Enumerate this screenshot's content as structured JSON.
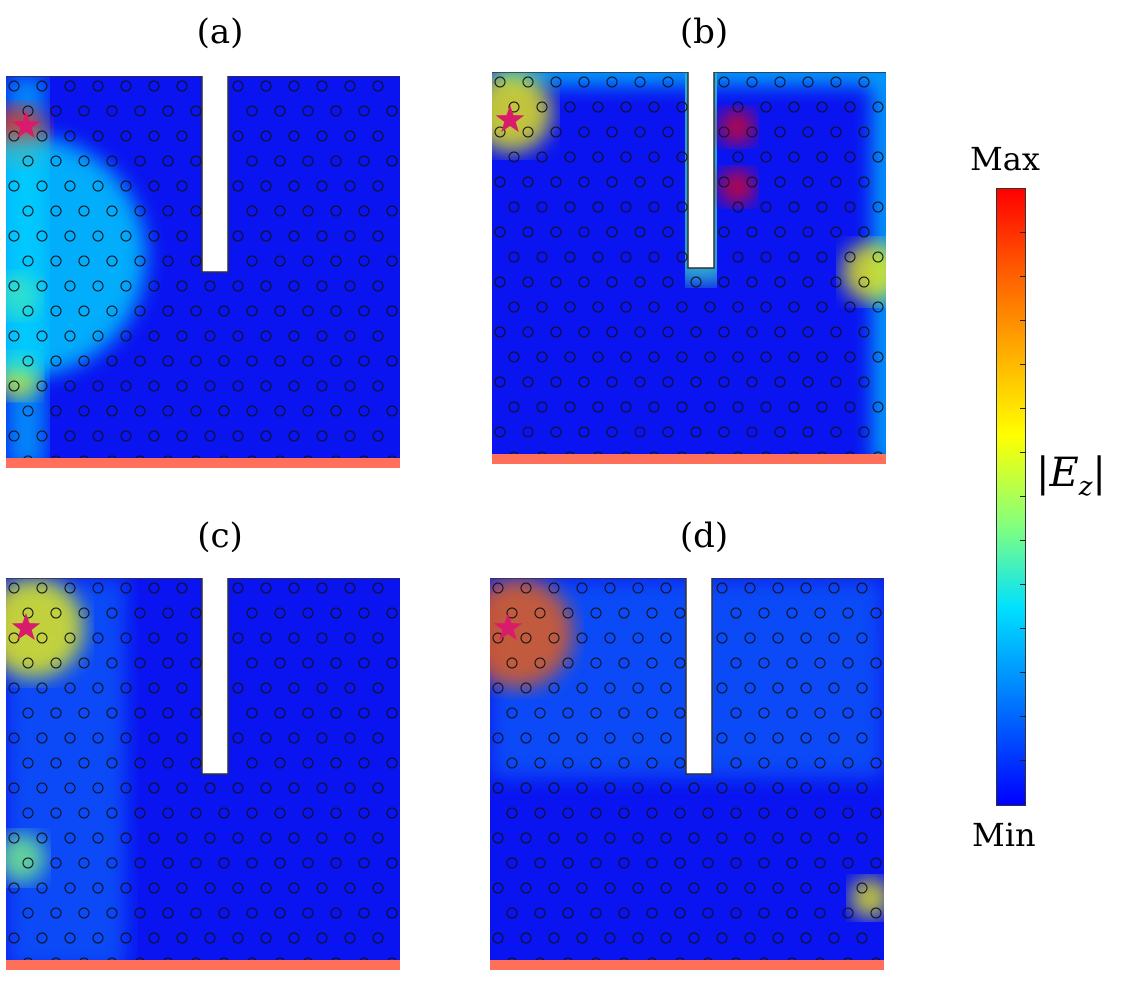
{
  "figure": {
    "panels": [
      {
        "label": "(a)",
        "description": "Field localized along left edge near source"
      },
      {
        "label": "(b)",
        "description": "Field travels along edges around slot, hotspots at slot right wall"
      },
      {
        "label": "(c)",
        "description": "Speckled field concentrated near source and left edge"
      },
      {
        "label": "(d)",
        "description": "Speckled field spread around slot and right edge"
      }
    ],
    "source_marker": "star",
    "bottom_boundary_color": "#ff6f5a",
    "colorbar": {
      "max_label": "Max",
      "min_label": "Min",
      "quantity_label": "|E_z|",
      "colormap": [
        "#ff0000",
        "#ff8000",
        "#ffff00",
        "#80ff80",
        "#00ffff",
        "#0080ff",
        "#0000ff"
      ]
    }
  }
}
